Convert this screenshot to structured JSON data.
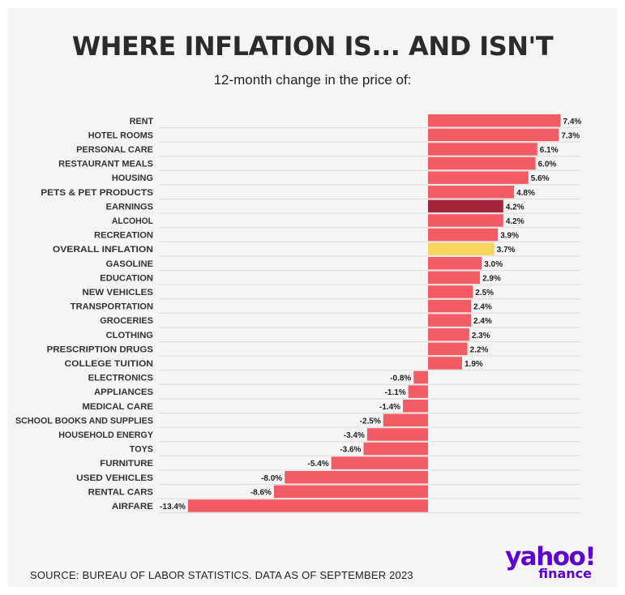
{
  "title": "WHERE INFLATION IS... AND ISN'T",
  "subtitle": "12-month change in the price of:",
  "source": "SOURCE: BUREAU OF LABOR STATISTICS. DATA AS OF SEPTEMBER 2023",
  "logo": {
    "main": "yahoo!",
    "sub": "finance"
  },
  "colors": {
    "default": "#f25b64",
    "earnings": "#a5263a",
    "overall": "#f9d45c",
    "background": "#f5f5f5",
    "logo": "#5f01d1"
  },
  "chart_data": {
    "type": "bar",
    "orientation": "horizontal",
    "title": "WHERE INFLATION IS... AND ISN'T",
    "subtitle": "12-month change in the price of:",
    "unit": "%",
    "xlim": [
      -13.4,
      7.4
    ],
    "categories": [
      "RENT",
      "HOTEL ROOMS",
      "PERSONAL CARE",
      "RESTAURANT MEALS",
      "HOUSING",
      "PETS & PET PRODUCTS",
      "EARNINGS",
      "ALCOHOL",
      "RECREATION",
      "OVERALL INFLATION",
      "GASOLINE",
      "EDUCATION",
      "NEW VEHICLES",
      "TRANSPORTATION",
      "GROCERIES",
      "CLOTHING",
      "PRESCRIPTION DRUGS",
      "COLLEGE TUITION",
      "ELECTRONICS",
      "APPLIANCES",
      "MEDICAL CARE",
      "SCHOOL BOOKS AND SUPPLIES",
      "HOUSEHOLD ENERGY",
      "TOYS",
      "FURNITURE",
      "USED VEHICLES",
      "RENTAL CARS",
      "AIRFARE"
    ],
    "values": [
      7.4,
      7.3,
      6.1,
      6.0,
      5.6,
      4.8,
      4.2,
      4.2,
      3.9,
      3.7,
      3.0,
      2.9,
      2.5,
      2.4,
      2.4,
      2.3,
      2.2,
      1.9,
      -0.8,
      -1.1,
      -1.4,
      -2.5,
      -3.4,
      -3.6,
      -5.4,
      -8.0,
      -8.6,
      -13.4
    ],
    "labels": [
      "7.4%",
      "7.3%",
      "6.1%",
      "6.0%",
      "5.6%",
      "4.8%",
      "4.2%",
      "4.2%",
      "3.9%",
      "3.7%",
      "3.0%",
      "2.9%",
      "2.5%",
      "2.4%",
      "2.4%",
      "2.3%",
      "2.2%",
      "1.9%",
      "-0.8%",
      "-1.1%",
      "-1.4%",
      "-2.5%",
      "-3.4%",
      "-3.6%",
      "-5.4%",
      "-8.0%",
      "-8.6%",
      "-13.4%"
    ],
    "highlight": {
      "EARNINGS": "#a5263a",
      "OVERALL INFLATION": "#f9d45c"
    }
  }
}
